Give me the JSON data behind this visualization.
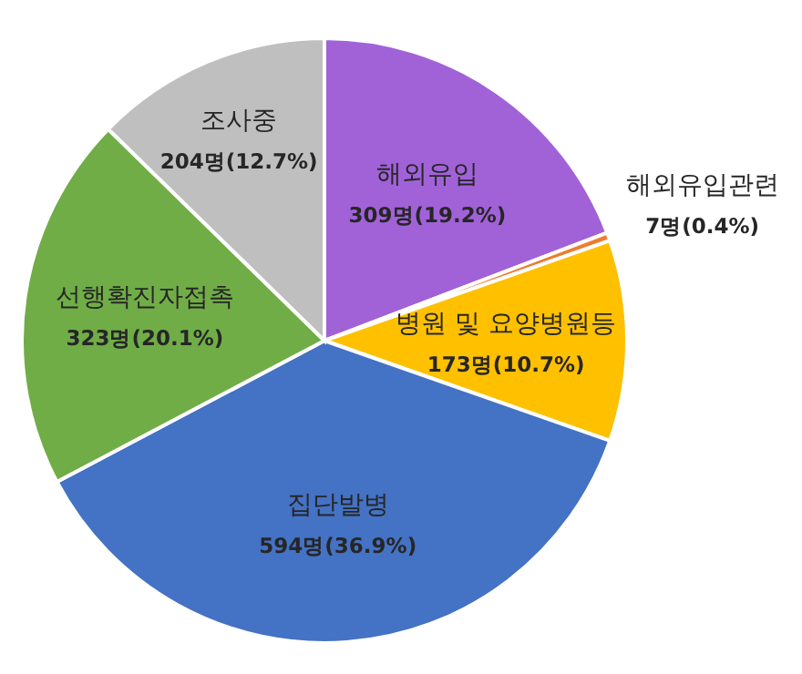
{
  "chart_data": {
    "type": "pie",
    "categories": [
      "해외유입",
      "해외유입관련",
      "병원 및 요양병원등",
      "집단발병",
      "선행확진자접촉",
      "조사중"
    ],
    "values": [
      309,
      7,
      173,
      594,
      323,
      204
    ],
    "colors": [
      "#a162d8",
      "#ed7d31",
      "#ffc000",
      "#4472c4",
      "#70ad47",
      "#bfbfbf"
    ],
    "value_labels": [
      "309명(19.2%)",
      "7명(0.4%)",
      "173명(10.7%)",
      "594명(36.9%)",
      "323명(20.1%)",
      "204명(12.7%)"
    ]
  }
}
